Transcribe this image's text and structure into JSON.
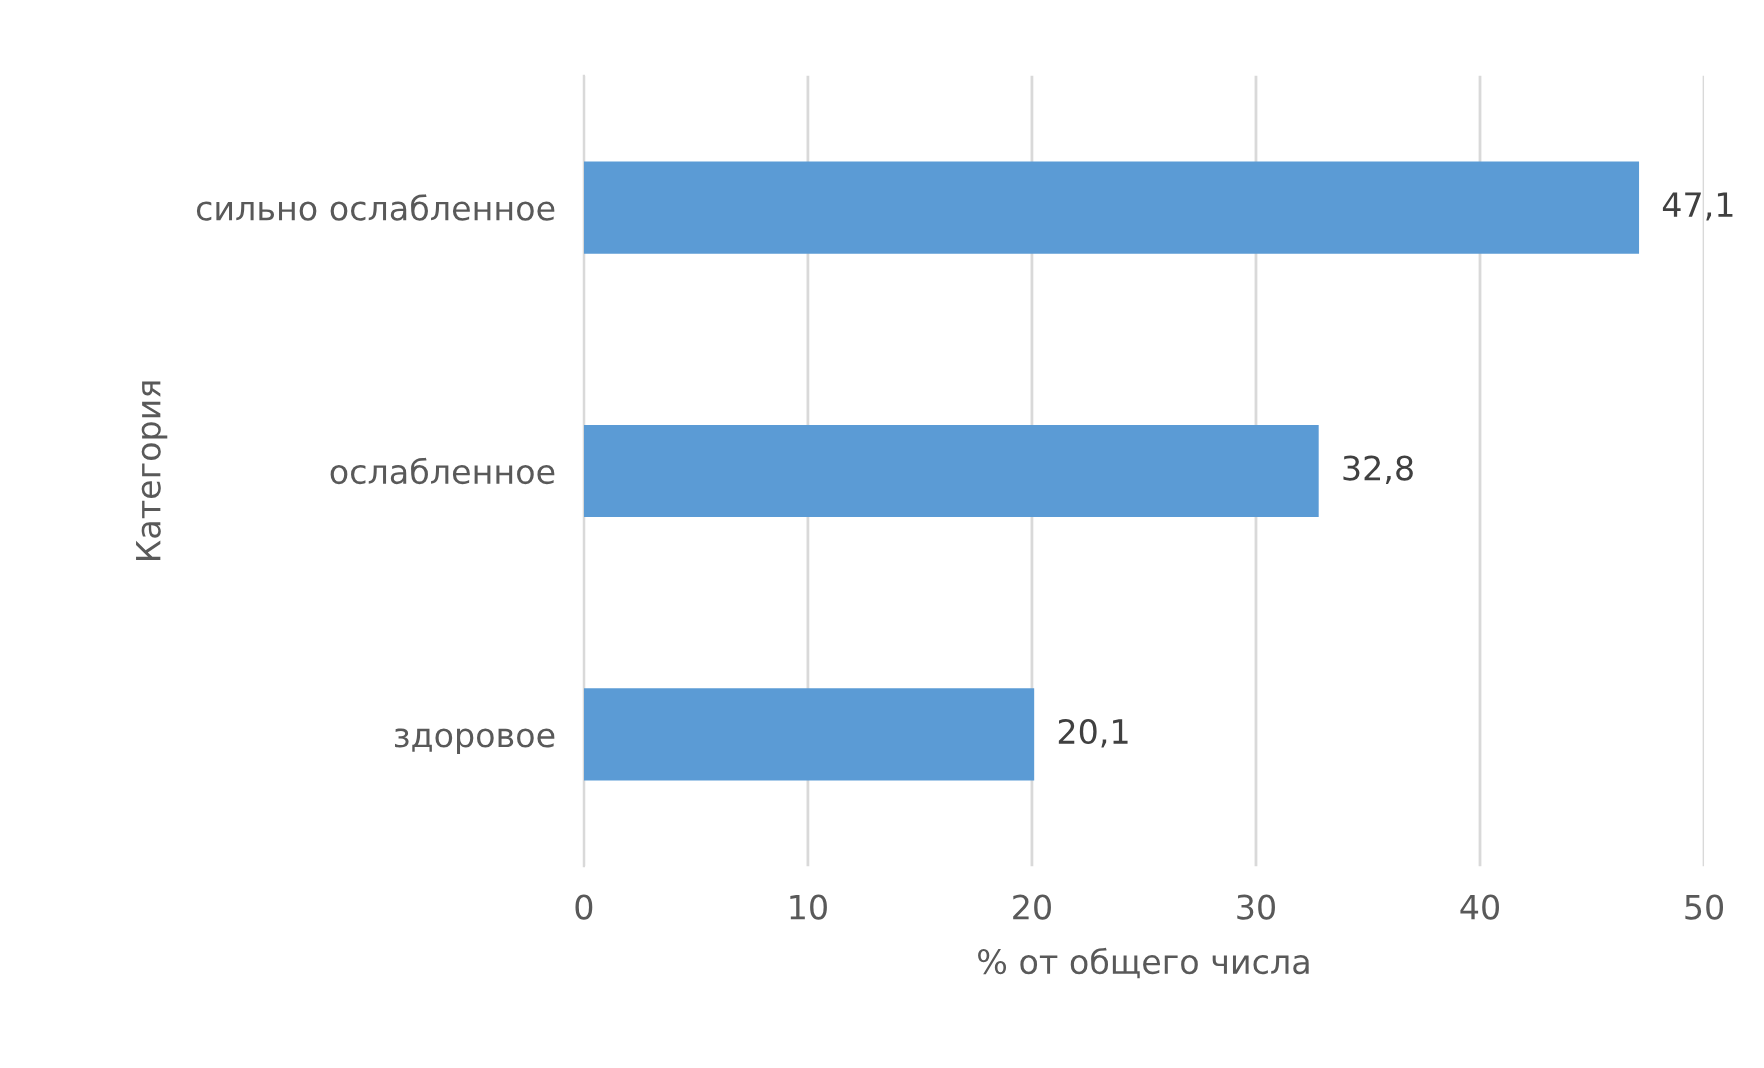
{
  "chart_data": {
    "type": "bar",
    "orientation": "horizontal",
    "categories": [
      "сильно ослабленное",
      "ослабленное",
      "здоровое"
    ],
    "values": [
      47.1,
      32.8,
      20.1
    ],
    "value_labels": [
      "47,1",
      "32,8",
      "20,1"
    ],
    "color": "#5b9bd5",
    "xlabel": "% от общего числа",
    "ylabel": "Категория",
    "xlim": [
      0,
      50
    ],
    "xticks": [
      0,
      10,
      20,
      30,
      40,
      50
    ],
    "grid": "x",
    "legend": false
  }
}
